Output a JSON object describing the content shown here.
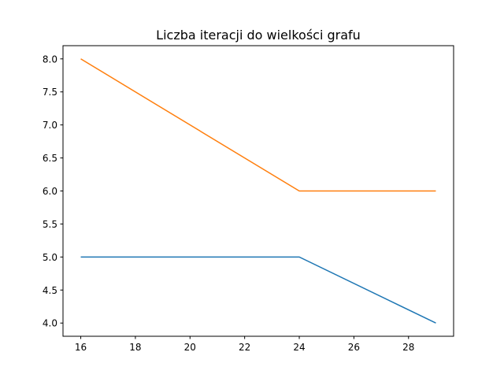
{
  "chart_data": {
    "type": "line",
    "title": "Liczba iteracji do wielkości grafu",
    "xlabel": "",
    "ylabel": "",
    "xlim": [
      15.35,
      29.65
    ],
    "ylim": [
      3.8,
      8.2
    ],
    "x_ticks": [
      16,
      18,
      20,
      22,
      24,
      26,
      28
    ],
    "y_ticks": [
      4.0,
      4.5,
      5.0,
      5.5,
      6.0,
      6.5,
      7.0,
      7.5,
      8.0
    ],
    "grid": false,
    "series": [
      {
        "color": "#1f77b4",
        "x": [
          16,
          24,
          29
        ],
        "y": [
          5,
          5,
          4
        ]
      },
      {
        "color": "#ff7f0e",
        "x": [
          16,
          24,
          29
        ],
        "y": [
          8,
          6,
          6
        ]
      }
    ]
  }
}
